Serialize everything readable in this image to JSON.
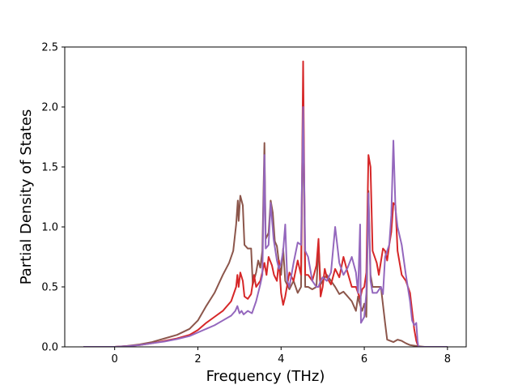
{
  "chart_data": {
    "type": "line",
    "title": "",
    "xlabel": "Frequency (THz)",
    "ylabel": "Partial Density of States",
    "xlim": [
      -1.2,
      8.45
    ],
    "ylim": [
      0.0,
      2.5
    ],
    "xticks": [
      0,
      2,
      4,
      6,
      8
    ],
    "xtick_labels": [
      "0",
      "2",
      "4",
      "6",
      "8"
    ],
    "yticks": [
      0.0,
      0.5,
      1.0,
      1.5,
      2.0,
      2.5
    ],
    "ytick_labels": [
      "0.0",
      "0.5",
      "1.0",
      "1.5",
      "2.0",
      "2.5"
    ],
    "grid": false,
    "legend": "none",
    "series": [
      {
        "color": "#8c564b",
        "points": [
          [
            -0.75,
            0
          ],
          [
            0,
            0
          ],
          [
            0.3,
            0.008
          ],
          [
            0.6,
            0.02
          ],
          [
            0.9,
            0.04
          ],
          [
            1.2,
            0.07
          ],
          [
            1.5,
            0.1
          ],
          [
            1.8,
            0.15
          ],
          [
            2.0,
            0.22
          ],
          [
            2.2,
            0.34
          ],
          [
            2.4,
            0.45
          ],
          [
            2.6,
            0.6
          ],
          [
            2.75,
            0.7
          ],
          [
            2.85,
            0.8
          ],
          [
            2.92,
            1.02
          ],
          [
            2.96,
            1.22
          ],
          [
            2.98,
            1.05
          ],
          [
            3.02,
            1.26
          ],
          [
            3.08,
            1.18
          ],
          [
            3.12,
            0.85
          ],
          [
            3.2,
            0.82
          ],
          [
            3.28,
            0.82
          ],
          [
            3.32,
            0.52
          ],
          [
            3.4,
            0.62
          ],
          [
            3.45,
            0.72
          ],
          [
            3.5,
            0.66
          ],
          [
            3.55,
            0.8
          ],
          [
            3.6,
            1.7
          ],
          [
            3.63,
            0.9
          ],
          [
            3.7,
            0.95
          ],
          [
            3.75,
            1.22
          ],
          [
            3.8,
            1.12
          ],
          [
            3.85,
            0.88
          ],
          [
            3.9,
            0.84
          ],
          [
            3.95,
            0.7
          ],
          [
            4.0,
            0.6
          ],
          [
            4.05,
            0.82
          ],
          [
            4.1,
            0.55
          ],
          [
            4.2,
            0.48
          ],
          [
            4.3,
            0.55
          ],
          [
            4.4,
            0.45
          ],
          [
            4.48,
            0.5
          ],
          [
            4.53,
            2.05
          ],
          [
            4.58,
            0.5
          ],
          [
            4.65,
            0.5
          ],
          [
            4.75,
            0.48
          ],
          [
            4.85,
            0.5
          ],
          [
            4.9,
            0.85
          ],
          [
            4.95,
            0.52
          ],
          [
            5.0,
            0.55
          ],
          [
            5.1,
            0.6
          ],
          [
            5.2,
            0.55
          ],
          [
            5.3,
            0.5
          ],
          [
            5.4,
            0.44
          ],
          [
            5.5,
            0.46
          ],
          [
            5.6,
            0.42
          ],
          [
            5.7,
            0.38
          ],
          [
            5.8,
            0.3
          ],
          [
            5.85,
            0.42
          ],
          [
            5.9,
            0.35
          ],
          [
            5.95,
            0.3
          ],
          [
            6.0,
            0.36
          ],
          [
            6.05,
            0.25
          ],
          [
            6.1,
            1.3
          ],
          [
            6.15,
            0.6
          ],
          [
            6.2,
            0.5
          ],
          [
            6.3,
            0.5
          ],
          [
            6.4,
            0.5
          ],
          [
            6.5,
            0.2
          ],
          [
            6.55,
            0.06
          ],
          [
            6.7,
            0.04
          ],
          [
            6.8,
            0.06
          ],
          [
            6.9,
            0.05
          ],
          [
            7.0,
            0.03
          ],
          [
            7.1,
            0.015
          ],
          [
            7.3,
            0.005
          ],
          [
            7.45,
            0
          ],
          [
            8.0,
            0
          ]
        ]
      },
      {
        "color": "#d62728",
        "points": [
          [
            -0.75,
            0
          ],
          [
            0,
            0
          ],
          [
            0.3,
            0.006
          ],
          [
            0.6,
            0.015
          ],
          [
            0.9,
            0.03
          ],
          [
            1.2,
            0.05
          ],
          [
            1.5,
            0.07
          ],
          [
            1.8,
            0.1
          ],
          [
            2.0,
            0.14
          ],
          [
            2.2,
            0.2
          ],
          [
            2.4,
            0.25
          ],
          [
            2.6,
            0.3
          ],
          [
            2.8,
            0.38
          ],
          [
            2.92,
            0.5
          ],
          [
            2.95,
            0.6
          ],
          [
            2.98,
            0.5
          ],
          [
            3.02,
            0.62
          ],
          [
            3.08,
            0.55
          ],
          [
            3.12,
            0.42
          ],
          [
            3.2,
            0.4
          ],
          [
            3.28,
            0.44
          ],
          [
            3.35,
            0.6
          ],
          [
            3.4,
            0.5
          ],
          [
            3.5,
            0.55
          ],
          [
            3.6,
            0.7
          ],
          [
            3.65,
            0.6
          ],
          [
            3.7,
            0.75
          ],
          [
            3.78,
            0.68
          ],
          [
            3.83,
            0.6
          ],
          [
            3.9,
            0.55
          ],
          [
            3.95,
            0.72
          ],
          [
            4.0,
            0.45
          ],
          [
            4.05,
            0.35
          ],
          [
            4.1,
            0.42
          ],
          [
            4.2,
            0.62
          ],
          [
            4.3,
            0.55
          ],
          [
            4.4,
            0.72
          ],
          [
            4.48,
            0.6
          ],
          [
            4.53,
            2.38
          ],
          [
            4.58,
            0.6
          ],
          [
            4.65,
            0.6
          ],
          [
            4.75,
            0.55
          ],
          [
            4.85,
            0.68
          ],
          [
            4.9,
            0.9
          ],
          [
            4.95,
            0.42
          ],
          [
            5.0,
            0.5
          ],
          [
            5.05,
            0.65
          ],
          [
            5.1,
            0.58
          ],
          [
            5.2,
            0.52
          ],
          [
            5.3,
            0.65
          ],
          [
            5.4,
            0.58
          ],
          [
            5.5,
            0.75
          ],
          [
            5.6,
            0.62
          ],
          [
            5.7,
            0.5
          ],
          [
            5.8,
            0.5
          ],
          [
            5.9,
            0.4
          ],
          [
            5.95,
            0.48
          ],
          [
            6.0,
            0.5
          ],
          [
            6.05,
            0.62
          ],
          [
            6.1,
            1.6
          ],
          [
            6.15,
            1.5
          ],
          [
            6.2,
            0.8
          ],
          [
            6.3,
            0.7
          ],
          [
            6.35,
            0.6
          ],
          [
            6.45,
            0.82
          ],
          [
            6.5,
            0.8
          ],
          [
            6.55,
            0.72
          ],
          [
            6.6,
            0.85
          ],
          [
            6.65,
            0.96
          ],
          [
            6.7,
            1.2
          ],
          [
            6.75,
            1.18
          ],
          [
            6.8,
            0.8
          ],
          [
            6.9,
            0.6
          ],
          [
            7.0,
            0.55
          ],
          [
            7.1,
            0.45
          ],
          [
            7.15,
            0.3
          ],
          [
            7.2,
            0.15
          ],
          [
            7.25,
            0.05
          ],
          [
            7.3,
            0
          ],
          [
            8.0,
            0
          ]
        ]
      },
      {
        "color": "#9467bd",
        "points": [
          [
            -0.75,
            0
          ],
          [
            0,
            0
          ],
          [
            0.3,
            0.006
          ],
          [
            0.6,
            0.015
          ],
          [
            0.9,
            0.03
          ],
          [
            1.2,
            0.045
          ],
          [
            1.5,
            0.065
          ],
          [
            1.8,
            0.09
          ],
          [
            2.0,
            0.12
          ],
          [
            2.2,
            0.15
          ],
          [
            2.4,
            0.18
          ],
          [
            2.6,
            0.22
          ],
          [
            2.8,
            0.26
          ],
          [
            2.9,
            0.3
          ],
          [
            2.95,
            0.34
          ],
          [
            3.0,
            0.28
          ],
          [
            3.05,
            0.3
          ],
          [
            3.1,
            0.27
          ],
          [
            3.2,
            0.3
          ],
          [
            3.3,
            0.28
          ],
          [
            3.4,
            0.38
          ],
          [
            3.5,
            0.52
          ],
          [
            3.55,
            0.6
          ],
          [
            3.6,
            1.6
          ],
          [
            3.63,
            0.82
          ],
          [
            3.7,
            0.85
          ],
          [
            3.75,
            1.2
          ],
          [
            3.82,
            0.9
          ],
          [
            3.9,
            0.72
          ],
          [
            3.95,
            0.65
          ],
          [
            4.0,
            0.7
          ],
          [
            4.05,
            0.8
          ],
          [
            4.1,
            1.02
          ],
          [
            4.15,
            0.55
          ],
          [
            4.2,
            0.5
          ],
          [
            4.3,
            0.7
          ],
          [
            4.4,
            0.87
          ],
          [
            4.48,
            0.85
          ],
          [
            4.53,
            2.0
          ],
          [
            4.58,
            0.8
          ],
          [
            4.65,
            0.75
          ],
          [
            4.75,
            0.55
          ],
          [
            4.85,
            0.5
          ],
          [
            4.9,
            0.5
          ],
          [
            4.95,
            0.55
          ],
          [
            5.0,
            0.58
          ],
          [
            5.1,
            0.55
          ],
          [
            5.2,
            0.62
          ],
          [
            5.3,
            1.0
          ],
          [
            5.4,
            0.7
          ],
          [
            5.5,
            0.6
          ],
          [
            5.6,
            0.66
          ],
          [
            5.7,
            0.75
          ],
          [
            5.8,
            0.62
          ],
          [
            5.85,
            0.45
          ],
          [
            5.9,
            1.02
          ],
          [
            5.92,
            0.2
          ],
          [
            6.0,
            0.25
          ],
          [
            6.05,
            0.45
          ],
          [
            6.1,
            1.28
          ],
          [
            6.15,
            0.55
          ],
          [
            6.2,
            0.45
          ],
          [
            6.3,
            0.45
          ],
          [
            6.4,
            0.5
          ],
          [
            6.45,
            0.44
          ],
          [
            6.5,
            0.75
          ],
          [
            6.6,
            0.85
          ],
          [
            6.65,
            1.1
          ],
          [
            6.7,
            1.72
          ],
          [
            6.75,
            1.15
          ],
          [
            6.8,
            1.0
          ],
          [
            6.9,
            0.85
          ],
          [
            7.0,
            0.6
          ],
          [
            7.1,
            0.38
          ],
          [
            7.15,
            0.22
          ],
          [
            7.2,
            0.18
          ],
          [
            7.25,
            0.2
          ],
          [
            7.28,
            0.05
          ],
          [
            7.3,
            0
          ],
          [
            8.0,
            0
          ]
        ]
      }
    ]
  }
}
